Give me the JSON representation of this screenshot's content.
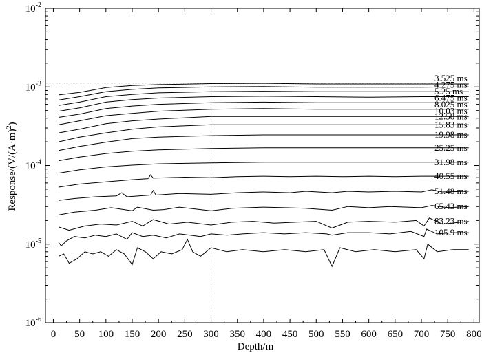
{
  "chart_data": {
    "type": "line",
    "xlabel": "Depth/m",
    "ylabel": "Response/(V/(A·m)",
    "ylabel_sup": "2",
    "ylabel_close": ")",
    "xlim": [
      -15,
      810
    ],
    "ylim": [
      1e-06,
      0.01
    ],
    "yscale": "log",
    "grid": false,
    "x_ticks": [
      0,
      50,
      100,
      150,
      200,
      250,
      300,
      350,
      400,
      450,
      500,
      550,
      600,
      650,
      700,
      750,
      800
    ],
    "y_ticks": [
      {
        "base": "10",
        "exp": "-6",
        "value": 1e-06
      },
      {
        "base": "10",
        "exp": "-5",
        "value": 1e-05
      },
      {
        "base": "10",
        "exp": "-4",
        "value": 0.0001
      },
      {
        "base": "10",
        "exp": "-3",
        "value": 0.001
      },
      {
        "base": "10",
        "exp": "-2",
        "value": 0.01
      }
    ],
    "reference_lines": {
      "x": 300,
      "y": 0.00112
    },
    "series": [
      {
        "name": "3.525 ms",
        "p": [
          [
            10,
            0.00079
          ],
          [
            50,
            0.00085
          ],
          [
            100,
            0.00098
          ],
          [
            150,
            0.00104
          ],
          [
            200,
            0.00107
          ],
          [
            300,
            0.0011
          ],
          [
            400,
            0.00111
          ],
          [
            500,
            0.00109
          ],
          [
            600,
            0.00109
          ],
          [
            700,
            0.00109
          ],
          [
            790,
            0.00109
          ]
        ]
      },
      {
        "name": "4.275 ms",
        "p": [
          [
            10,
            0.00068
          ],
          [
            50,
            0.00075
          ],
          [
            100,
            0.00087
          ],
          [
            150,
            0.00093
          ],
          [
            200,
            0.00097
          ],
          [
            300,
            0.001
          ],
          [
            400,
            0.00101
          ],
          [
            500,
            0.00099
          ],
          [
            600,
            0.00099
          ],
          [
            700,
            0.00099
          ],
          [
            790,
            0.001
          ]
        ]
      },
      {
        "name": "5.25 ms",
        "p": [
          [
            10,
            0.00058
          ],
          [
            50,
            0.00064
          ],
          [
            100,
            0.00075
          ],
          [
            150,
            0.0008
          ],
          [
            200,
            0.00084
          ],
          [
            300,
            0.00087
          ],
          [
            400,
            0.00088
          ],
          [
            500,
            0.00087
          ],
          [
            600,
            0.00087
          ],
          [
            700,
            0.00087
          ],
          [
            790,
            0.00087
          ]
        ]
      },
      {
        "name": "6.475 ms",
        "p": [
          [
            10,
            0.00049
          ],
          [
            50,
            0.00054
          ],
          [
            100,
            0.00064
          ],
          [
            150,
            0.00069
          ],
          [
            200,
            0.00072
          ],
          [
            300,
            0.00075
          ],
          [
            400,
            0.00076
          ],
          [
            500,
            0.00075
          ],
          [
            600,
            0.00074
          ],
          [
            700,
            0.00075
          ],
          [
            790,
            0.00075
          ]
        ]
      },
      {
        "name": "8.025 ms",
        "p": [
          [
            10,
            0.00041
          ],
          [
            50,
            0.00045
          ],
          [
            100,
            0.00053
          ],
          [
            150,
            0.00057
          ],
          [
            200,
            0.0006
          ],
          [
            300,
            0.00063
          ],
          [
            400,
            0.00064
          ],
          [
            500,
            0.00063
          ],
          [
            600,
            0.00063
          ],
          [
            700,
            0.00063
          ],
          [
            790,
            0.00063
          ]
        ]
      },
      {
        "name": "10.03 ms",
        "p": [
          [
            10,
            0.00033
          ],
          [
            50,
            0.00037
          ],
          [
            100,
            0.00043
          ],
          [
            150,
            0.00046
          ],
          [
            200,
            0.00049
          ],
          [
            300,
            0.00052
          ],
          [
            400,
            0.00053
          ],
          [
            500,
            0.00052
          ],
          [
            600,
            0.00052
          ],
          [
            700,
            0.00052
          ],
          [
            790,
            0.00052
          ]
        ]
      },
      {
        "name": "12.58 ms",
        "p": [
          [
            10,
            0.00026
          ],
          [
            50,
            0.00029
          ],
          [
            100,
            0.00034
          ],
          [
            150,
            0.00037
          ],
          [
            200,
            0.00039
          ],
          [
            300,
            0.00042
          ],
          [
            400,
            0.00042
          ],
          [
            500,
            0.00042
          ],
          [
            600,
            0.00042
          ],
          [
            700,
            0.00042
          ],
          [
            790,
            0.00042
          ]
        ]
      },
      {
        "name": "15.83 ms",
        "p": [
          [
            10,
            0.0002
          ],
          [
            50,
            0.00023
          ],
          [
            100,
            0.00026
          ],
          [
            150,
            0.00029
          ],
          [
            200,
            0.00031
          ],
          [
            300,
            0.00033
          ],
          [
            400,
            0.00033
          ],
          [
            500,
            0.00033
          ],
          [
            600,
            0.00033
          ],
          [
            700,
            0.00033
          ],
          [
            790,
            0.00033
          ]
        ]
      },
      {
        "name": "19.98 ms",
        "p": [
          [
            10,
            0.000155
          ],
          [
            50,
            0.000175
          ],
          [
            100,
            0.000198
          ],
          [
            150,
            0.00022
          ],
          [
            200,
            0.00023
          ],
          [
            300,
            0.00024
          ],
          [
            400,
            0.000245
          ],
          [
            500,
            0.000245
          ],
          [
            600,
            0.000245
          ],
          [
            700,
            0.000245
          ],
          [
            790,
            0.000245
          ]
        ]
      },
      {
        "name": "25.25 ms",
        "p": [
          [
            10,
            0.000115
          ],
          [
            50,
            0.000128
          ],
          [
            100,
            0.000142
          ],
          [
            150,
            0.000152
          ],
          [
            200,
            0.000158
          ],
          [
            300,
            0.000165
          ],
          [
            400,
            0.000168
          ],
          [
            500,
            0.000168
          ],
          [
            600,
            0.000168
          ],
          [
            700,
            0.000168
          ],
          [
            790,
            0.000168
          ]
        ]
      },
      {
        "name": "31.98 ms",
        "p": [
          [
            10,
            8e-05
          ],
          [
            50,
            8.8e-05
          ],
          [
            100,
            9.6e-05
          ],
          [
            150,
            0.000101
          ],
          [
            200,
            0.000105
          ],
          [
            300,
            0.000108
          ],
          [
            400,
            0.00011
          ],
          [
            500,
            0.00011
          ],
          [
            600,
            0.00011
          ],
          [
            700,
            0.00011
          ],
          [
            790,
            0.00011
          ]
        ]
      },
      {
        "name": "40.55 ms",
        "p": [
          [
            10,
            5.3e-05
          ],
          [
            50,
            5.8e-05
          ],
          [
            100,
            6.2e-05
          ],
          [
            150,
            6.6e-05
          ],
          [
            180,
            6.8e-05
          ],
          [
            185,
            7.6e-05
          ],
          [
            190,
            6.9e-05
          ],
          [
            250,
            7.1e-05
          ],
          [
            300,
            7e-05
          ],
          [
            350,
            7.2e-05
          ],
          [
            400,
            7.3e-05
          ],
          [
            450,
            7.2e-05
          ],
          [
            500,
            7.3e-05
          ],
          [
            550,
            7.2e-05
          ],
          [
            600,
            7.3e-05
          ],
          [
            650,
            7.2e-05
          ],
          [
            700,
            7.3e-05
          ],
          [
            790,
            7.3e-05
          ]
        ]
      },
      {
        "name": "51.48 ms",
        "p": [
          [
            10,
            3.6e-05
          ],
          [
            40,
            3.8e-05
          ],
          [
            80,
            4e-05
          ],
          [
            120,
            4.1e-05
          ],
          [
            130,
            4.5e-05
          ],
          [
            140,
            4e-05
          ],
          [
            185,
            4.2e-05
          ],
          [
            190,
            4.8e-05
          ],
          [
            195,
            4.2e-05
          ],
          [
            240,
            4.4e-05
          ],
          [
            300,
            4.3e-05
          ],
          [
            350,
            4.5e-05
          ],
          [
            400,
            4.6e-05
          ],
          [
            450,
            4.5e-05
          ],
          [
            480,
            4.7e-05
          ],
          [
            530,
            4.5e-05
          ],
          [
            560,
            4.7e-05
          ],
          [
            600,
            4.6e-05
          ],
          [
            650,
            4.7e-05
          ],
          [
            700,
            4.6e-05
          ],
          [
            720,
            4.9e-05
          ],
          [
            740,
            4.6e-05
          ],
          [
            790,
            4.7e-05
          ]
        ]
      },
      {
        "name": "65.43 ms",
        "p": [
          [
            10,
            2.35e-05
          ],
          [
            40,
            2.55e-05
          ],
          [
            80,
            2.7e-05
          ],
          [
            110,
            2.9e-05
          ],
          [
            150,
            2.65e-05
          ],
          [
            160,
            2.95e-05
          ],
          [
            190,
            2.7e-05
          ],
          [
            210,
            2.75e-05
          ],
          [
            240,
            2.95e-05
          ],
          [
            300,
            2.65e-05
          ],
          [
            340,
            2.85e-05
          ],
          [
            400,
            2.95e-05
          ],
          [
            440,
            2.9e-05
          ],
          [
            480,
            2.85e-05
          ],
          [
            530,
            2.7e-05
          ],
          [
            560,
            3e-05
          ],
          [
            600,
            2.9e-05
          ],
          [
            640,
            3e-05
          ],
          [
            700,
            2.9e-05
          ],
          [
            720,
            3.1e-05
          ],
          [
            750,
            2.9e-05
          ],
          [
            790,
            3e-05
          ]
        ]
      },
      {
        "name": "83.23 ms",
        "p": [
          [
            10,
            1.65e-05
          ],
          [
            30,
            1.5e-05
          ],
          [
            60,
            1.7e-05
          ],
          [
            90,
            1.8e-05
          ],
          [
            120,
            1.75e-05
          ],
          [
            150,
            1.95e-05
          ],
          [
            170,
            1.7e-05
          ],
          [
            190,
            2.05e-05
          ],
          [
            220,
            1.8e-05
          ],
          [
            255,
            1.9e-05
          ],
          [
            300,
            1.75e-05
          ],
          [
            340,
            1.9e-05
          ],
          [
            380,
            1.95e-05
          ],
          [
            420,
            1.85e-05
          ],
          [
            460,
            1.9e-05
          ],
          [
            500,
            1.95e-05
          ],
          [
            530,
            1.6e-05
          ],
          [
            560,
            1.9e-05
          ],
          [
            600,
            1.95e-05
          ],
          [
            650,
            1.9e-05
          ],
          [
            690,
            2e-05
          ],
          [
            705,
            1.7e-05
          ],
          [
            715,
            2.15e-05
          ],
          [
            740,
            1.8e-05
          ],
          [
            790,
            1.95e-05
          ]
        ]
      },
      {
        "name": "105.9 ms",
        "p": [
          [
            10,
            1.05e-05
          ],
          [
            15,
            9.5e-06
          ],
          [
            25,
            1.1e-05
          ],
          [
            40,
            1.25e-05
          ],
          [
            60,
            1.2e-05
          ],
          [
            80,
            1.3e-05
          ],
          [
            100,
            1.25e-05
          ],
          [
            120,
            1.35e-05
          ],
          [
            140,
            1.15e-05
          ],
          [
            150,
            1.4e-05
          ],
          [
            170,
            1.25e-05
          ],
          [
            190,
            1.3e-05
          ],
          [
            215,
            1.2e-05
          ],
          [
            240,
            1.35e-05
          ],
          [
            260,
            1.3e-05
          ],
          [
            280,
            1.25e-05
          ],
          [
            300,
            1.35e-05
          ],
          [
            330,
            1.3e-05
          ],
          [
            360,
            1.35e-05
          ],
          [
            400,
            1.4e-05
          ],
          [
            440,
            1.35e-05
          ],
          [
            480,
            1.4e-05
          ],
          [
            520,
            1.35e-05
          ],
          [
            530,
            1.3e-05
          ],
          [
            560,
            1.4e-05
          ],
          [
            600,
            1.4e-05
          ],
          [
            640,
            1.35e-05
          ],
          [
            680,
            1.45e-05
          ],
          [
            705,
            1.25e-05
          ],
          [
            710,
            1.55e-05
          ],
          [
            730,
            1.35e-05
          ],
          [
            760,
            1.4e-05
          ],
          [
            790,
            1.4e-05
          ]
        ]
      },
      {
        "name": "",
        "p": [
          [
            10,
            7e-06
          ],
          [
            20,
            7.5e-06
          ],
          [
            30,
            5.7e-06
          ],
          [
            45,
            6.5e-06
          ],
          [
            60,
            8e-06
          ],
          [
            75,
            7.5e-06
          ],
          [
            90,
            8e-06
          ],
          [
            105,
            7e-06
          ],
          [
            120,
            8.5e-06
          ],
          [
            135,
            7.5e-06
          ],
          [
            150,
            5.5e-06
          ],
          [
            160,
            9e-06
          ],
          [
            175,
            8e-06
          ],
          [
            190,
            6.5e-06
          ],
          [
            205,
            8e-06
          ],
          [
            225,
            7.5e-06
          ],
          [
            245,
            8.5e-06
          ],
          [
            255,
            1.15e-05
          ],
          [
            265,
            8e-06
          ],
          [
            280,
            7e-06
          ],
          [
            300,
            9e-06
          ],
          [
            330,
            8e-06
          ],
          [
            360,
            8.5e-06
          ],
          [
            400,
            8e-06
          ],
          [
            440,
            8.5e-06
          ],
          [
            480,
            8e-06
          ],
          [
            515,
            8.5e-06
          ],
          [
            530,
            5.2e-06
          ],
          [
            545,
            9e-06
          ],
          [
            575,
            8e-06
          ],
          [
            610,
            8.5e-06
          ],
          [
            650,
            8e-06
          ],
          [
            690,
            8.5e-06
          ],
          [
            705,
            6.5e-06
          ],
          [
            712,
            1e-05
          ],
          [
            730,
            8e-06
          ],
          [
            760,
            8.5e-06
          ],
          [
            790,
            8.5e-06
          ]
        ]
      }
    ]
  }
}
